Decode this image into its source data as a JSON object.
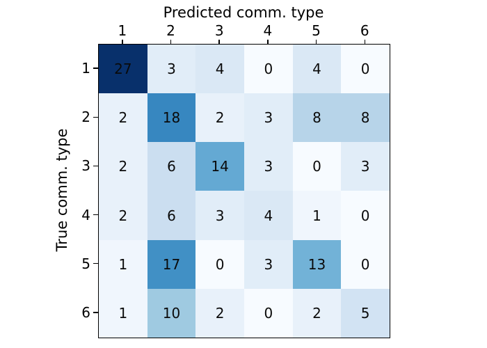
{
  "chart_data": {
    "type": "heatmap",
    "xlabel": "Predicted comm. type",
    "ylabel": "True comm. type",
    "x_ticklabels": [
      "1",
      "2",
      "3",
      "4",
      "5",
      "6"
    ],
    "y_ticklabels": [
      "1",
      "2",
      "3",
      "4",
      "5",
      "6"
    ],
    "values": [
      [
        27,
        3,
        4,
        0,
        4,
        0
      ],
      [
        2,
        18,
        2,
        3,
        8,
        8
      ],
      [
        2,
        6,
        14,
        3,
        0,
        3
      ],
      [
        2,
        6,
        3,
        4,
        1,
        0
      ],
      [
        1,
        17,
        0,
        3,
        13,
        0
      ],
      [
        1,
        10,
        2,
        0,
        2,
        5
      ]
    ],
    "colormap": "Blues",
    "vmin": 0,
    "vmax": 27,
    "cell_colors": [
      [
        "#08306b",
        "#e1edf8",
        "#dae8f5",
        "#f7fbff",
        "#dae8f5",
        "#f7fbff"
      ],
      [
        "#e8f1fa",
        "#3787c0",
        "#e8f1fa",
        "#e1edf8",
        "#b7d4e9",
        "#b7d4e9"
      ],
      [
        "#e8f1fa",
        "#cbdef0",
        "#64a9d3",
        "#e1edf8",
        "#f7fbff",
        "#e1edf8"
      ],
      [
        "#e8f1fa",
        "#cbdef0",
        "#e1edf8",
        "#dae8f5",
        "#f0f6fd",
        "#f7fbff"
      ],
      [
        "#f0f6fd",
        "#4190c5",
        "#f7fbff",
        "#e1edf8",
        "#72b2d7",
        "#f7fbff"
      ],
      [
        "#f0f6fd",
        "#9fcae1",
        "#e8f1fa",
        "#f7fbff",
        "#e8f1fa",
        "#d2e3f3"
      ]
    ],
    "text_color": "#0a0a0a",
    "border_color": "#000000",
    "background_color": "#ffffff",
    "legend": "none",
    "grid": "off"
  }
}
